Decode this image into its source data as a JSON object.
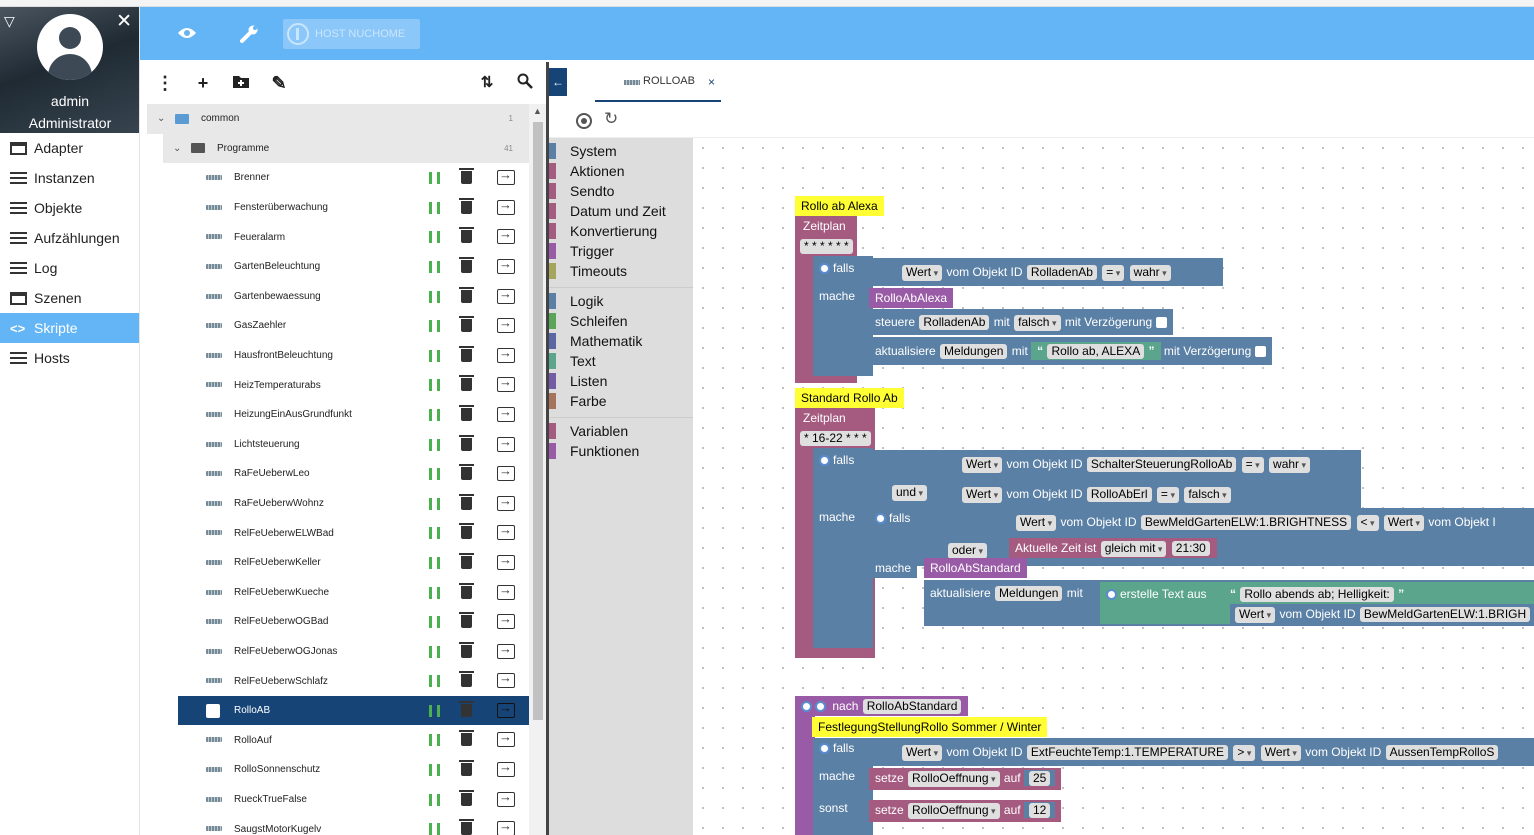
{
  "user": {
    "name": "admin",
    "role": "Administrator"
  },
  "nav": [
    {
      "label": "Adapter",
      "icon": "adapter-icon"
    },
    {
      "label": "Instanzen",
      "icon": "instances-icon"
    },
    {
      "label": "Objekte",
      "icon": "objects-icon"
    },
    {
      "label": "Aufzählungen",
      "icon": "enums-icon"
    },
    {
      "label": "Log",
      "icon": "log-icon"
    },
    {
      "label": "Szenen",
      "icon": "scenes-icon"
    },
    {
      "label": "Skripte",
      "icon": "scripts-icon",
      "active": true
    },
    {
      "label": "Hosts",
      "icon": "hosts-icon"
    }
  ],
  "header": {
    "host_label": "HOST NUCHOME"
  },
  "tree": {
    "root": {
      "label": "common",
      "count": "1"
    },
    "group": {
      "label": "Programme",
      "count": "41"
    },
    "scripts": [
      "Brenner",
      "Fensterüberwachung",
      "Feueralarm",
      "GartenBeleuchtung",
      "Gartenbewaessung",
      "GasZaehler",
      "HausfrontBeleuchtung",
      "HeizTemperaturabs",
      "HeizungEinAusGrundfunkt",
      "Lichtsteuerung",
      "RaFeUeberwLeo",
      "RaFeUeberwWohnz",
      "RelFeUeberwELWBad",
      "RelFeUeberwKeller",
      "RelFeUeberwKueche",
      "RelFeUeberwOGBad",
      "RelFeUeberwOGJonas",
      "RelFeUeberwSchlafz",
      "RolloAB",
      "RolloAuf",
      "RolloSonnenschutz",
      "RueckTrueFalse",
      "SaugstMotorKugelv"
    ],
    "selected": "RolloAB"
  },
  "editor": {
    "tab_label": "ROLLOAB",
    "tab_close": "×"
  },
  "toolbox": {
    "group1": [
      {
        "label": "System",
        "color": "#5b80a5"
      },
      {
        "label": "Aktionen",
        "color": "#a55b80"
      },
      {
        "label": "Sendto",
        "color": "#a55b80"
      },
      {
        "label": "Datum und Zeit",
        "color": "#a55b80"
      },
      {
        "label": "Konvertierung",
        "color": "#a55b80"
      },
      {
        "label": "Trigger",
        "color": "#995ba5"
      },
      {
        "label": "Timeouts",
        "color": "#a5a55b"
      }
    ],
    "group2": [
      {
        "label": "Logik",
        "color": "#5b80a5"
      },
      {
        "label": "Schleifen",
        "color": "#5ba55b"
      },
      {
        "label": "Mathematik",
        "color": "#5b67a5"
      },
      {
        "label": "Text",
        "color": "#5ba58c"
      },
      {
        "label": "Listen",
        "color": "#745ba5"
      },
      {
        "label": "Farbe",
        "color": "#a5745b"
      }
    ],
    "group3": [
      {
        "label": "Variablen",
        "color": "#a55b80"
      },
      {
        "label": "Funktionen",
        "color": "#995ba5"
      }
    ]
  },
  "blocks": {
    "alexa": {
      "title": "Rollo ab Alexa",
      "zeitplan": "Zeitplan",
      "cron": "* * * * * *",
      "falls": "falls",
      "wert": "Wert",
      "vom_objekt": "vom Objekt ID",
      "obj1": "RolladenAb",
      "op": "=",
      "val": "wahr",
      "mache": "mache",
      "func": "RolloAbAlexa",
      "steuere": "steuere",
      "obj2": "RolladenAb",
      "mit": "mit",
      "val2": "falsch",
      "verz": "mit Verzögerung",
      "aktualisiere": "aktualisiere",
      "obj3": "Meldungen",
      "text": "Rollo ab, ALEXA"
    },
    "standard": {
      "title": "Standard Rollo Ab",
      "zeitplan": "Zeitplan",
      "cron": "* 16-22 * * *",
      "falls": "falls",
      "obj1": "SchalterSteuerungRolloAb",
      "op1": "=",
      "val1": "wahr",
      "und": "und",
      "obj2": "RolloAbErl",
      "op2": "=",
      "val2": "falsch",
      "mache": "mache",
      "falls2": "falls",
      "obj3": "BewMeldGartenELW:1.BRIGHTNESS",
      "op3": "<",
      "wert3": "Wert",
      "vom3": "vom Objekt I",
      "oder": "oder",
      "zeit": "Aktuelle Zeit ist",
      "gleich": "gleich mit",
      "time": "21:30",
      "mache2": "mache",
      "func": "RolloAbStandard",
      "aktualisiere": "aktualisiere",
      "obj4": "Meldungen",
      "mit": "mit",
      "erstelle": "erstelle Text aus",
      "text": "Rollo abends ab; Helligkeit:",
      "wert5": "Wert",
      "vom5": "vom Objekt ID",
      "obj5": "BewMeldGartenELW:1.BRIGH"
    },
    "nach": {
      "nach": "nach",
      "func": "RolloAbStandard",
      "title": "FestlegungStellungRollo Sommer / Winter",
      "falls": "falls",
      "obj1": "ExtFeuchteTemp:1.TEMPERATURE",
      "op": ">",
      "obj2": "AussenTempRolloS",
      "mache": "mache",
      "setze": "setze",
      "var": "RolloOeffnung",
      "auf": "auf",
      "v1": "25",
      "sonst": "sonst",
      "v2": "12"
    }
  }
}
